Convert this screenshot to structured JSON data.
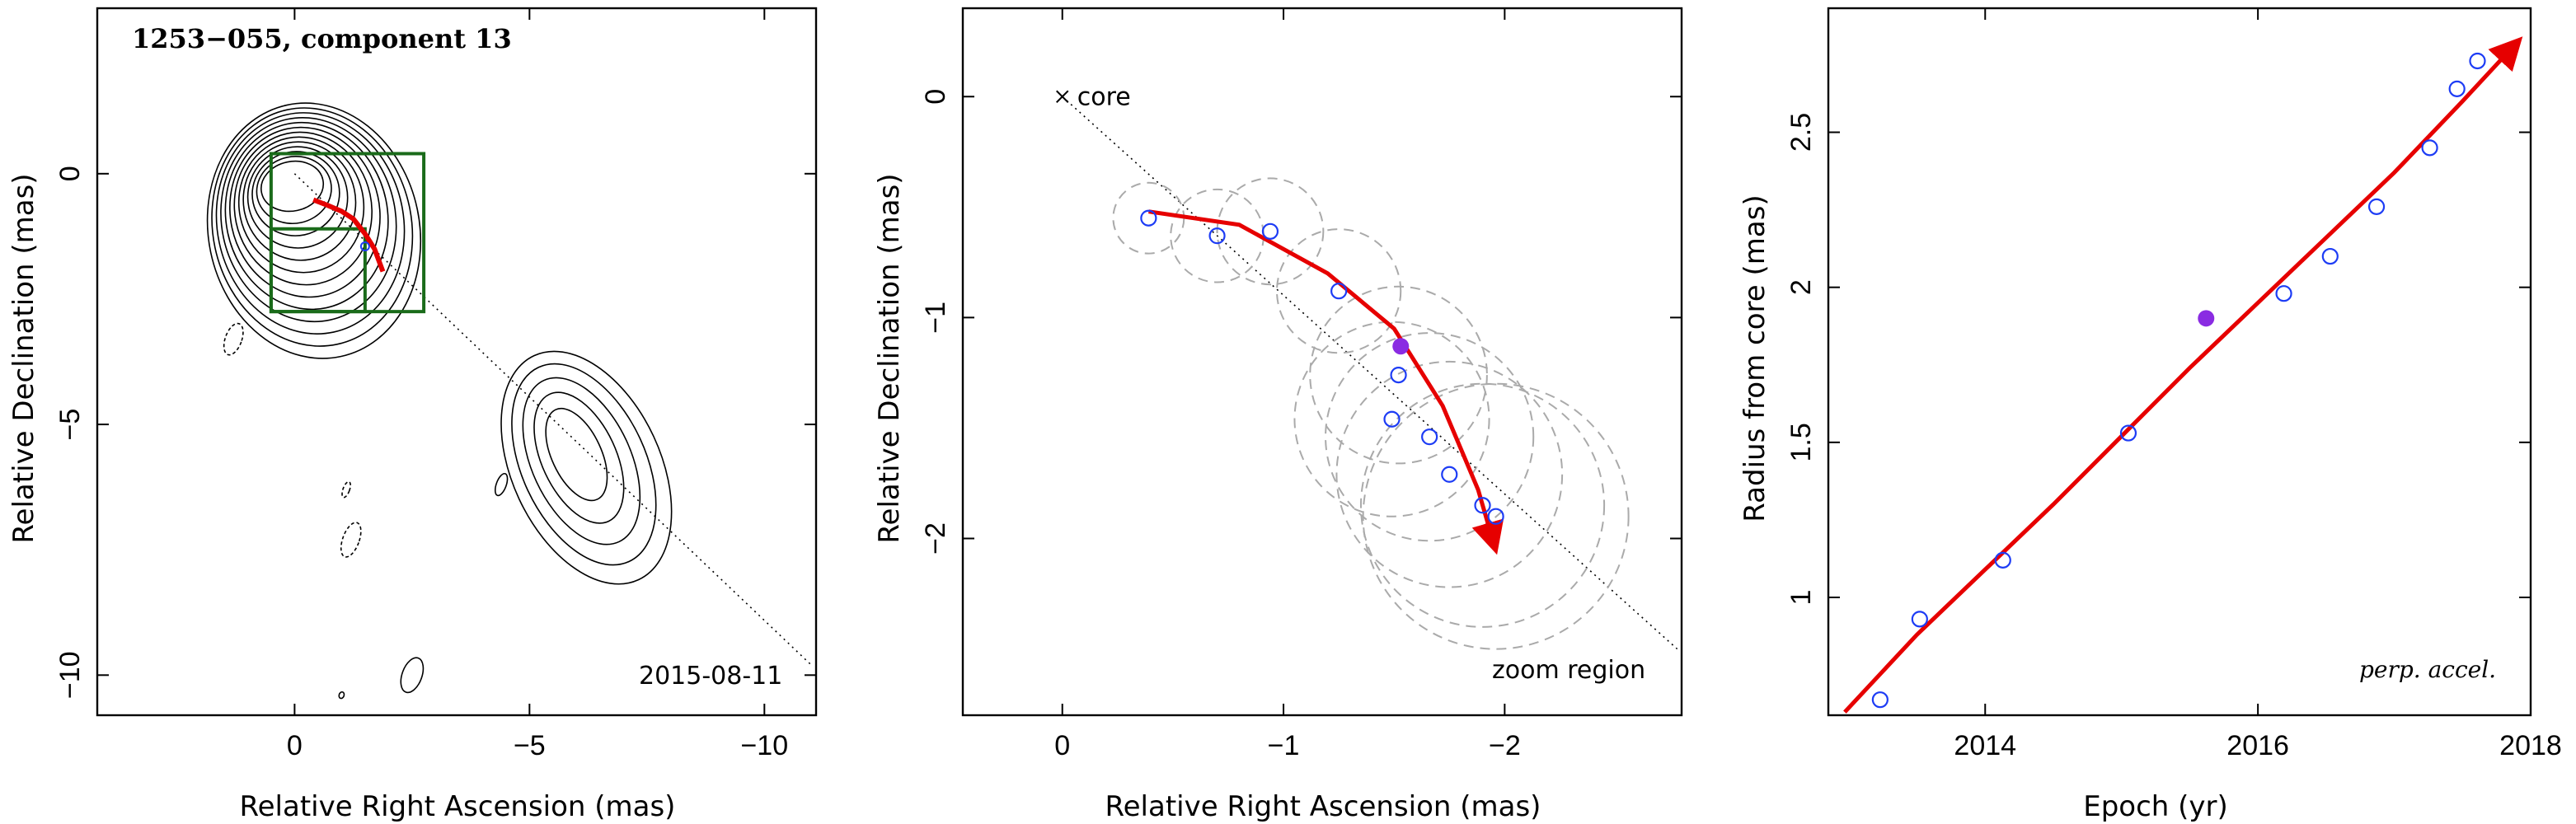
{
  "chart_data": [
    {
      "type": "contour",
      "title": "1253−055, component 13",
      "date_label": "2015-08-11",
      "xlabel": "Relative Right Ascension (mas)",
      "ylabel": "Relative Declination (mas)",
      "xlim": [
        4.2,
        -11.1
      ],
      "ylim": [
        -10.8,
        3.3
      ],
      "xticks": [
        {
          "v": 0,
          "label": "0"
        },
        {
          "v": -5,
          "label": "−5"
        },
        {
          "v": -10,
          "label": "−10"
        }
      ],
      "yticks": [
        {
          "v": 0,
          "label": "0"
        },
        {
          "v": -5,
          "label": "−5"
        },
        {
          "v": -10,
          "label": "−10"
        }
      ],
      "zoom_boxes": [
        {
          "x1": 0.5,
          "x2": -2.75,
          "y1": 0.4,
          "y2": -2.75
        },
        {
          "x1": 0.5,
          "x2": -1.5,
          "y1": -1.1,
          "y2": -2.75
        }
      ],
      "trajectory_line": {
        "x1": 0,
        "y1": 0,
        "x2": -11,
        "y2": -9.8
      },
      "trajectory_arrow": [
        [
          -0.4,
          -0.52
        ],
        [
          -0.7,
          -0.63
        ],
        [
          -1.0,
          -0.75
        ],
        [
          -1.25,
          -0.9
        ],
        [
          -1.5,
          -1.2
        ],
        [
          -1.7,
          -1.5
        ],
        [
          -1.88,
          -1.95
        ]
      ],
      "marker": {
        "x": -1.5,
        "y": -1.45
      }
    },
    {
      "type": "scatter",
      "xlabel": "Relative Right Ascension (mas)",
      "ylabel": "Relative Declination (mas)",
      "xlim": [
        0.45,
        -2.8
      ],
      "ylim": [
        -2.8,
        0.4
      ],
      "xticks": [
        {
          "v": 0,
          "label": "0"
        },
        {
          "v": -1,
          "label": "−1"
        },
        {
          "v": -2,
          "label": "−2"
        }
      ],
      "yticks": [
        {
          "v": 0,
          "label": "0"
        },
        {
          "v": -1,
          "label": "−1"
        },
        {
          "v": -2,
          "label": "−2"
        }
      ],
      "core_label": "core",
      "corner_label": "zoom region",
      "trajectory_line": {
        "x1": 0,
        "y1": 0,
        "x2": -2.78,
        "y2": -2.5
      },
      "points": [
        {
          "x": -0.39,
          "y": -0.55,
          "r": 0.16
        },
        {
          "x": -0.7,
          "y": -0.63,
          "r": 0.21
        },
        {
          "x": -0.94,
          "y": -0.61,
          "r": 0.24
        },
        {
          "x": -1.25,
          "y": -0.88,
          "r": 0.28
        },
        {
          "x": -1.52,
          "y": -1.26,
          "r": 0.4
        },
        {
          "x": -1.49,
          "y": -1.46,
          "r": 0.44
        },
        {
          "x": -1.66,
          "y": -1.54,
          "r": 0.47
        },
        {
          "x": -1.75,
          "y": -1.71,
          "r": 0.51
        },
        {
          "x": -1.9,
          "y": -1.85,
          "r": 0.55
        },
        {
          "x": -1.96,
          "y": -1.9,
          "r": 0.6
        }
      ],
      "filled_point": {
        "x": -1.53,
        "y": -1.13
      },
      "fit_curve": [
        [
          -0.39,
          -0.52
        ],
        [
          -0.8,
          -0.58
        ],
        [
          -1.2,
          -0.8
        ],
        [
          -1.5,
          -1.05
        ],
        [
          -1.72,
          -1.4
        ],
        [
          -1.88,
          -1.78
        ],
        [
          -1.95,
          -2.02
        ]
      ]
    },
    {
      "type": "scatter",
      "xlabel": "Epoch (yr)",
      "ylabel": "Radius from core (mas)",
      "xlim": [
        2012.85,
        2018
      ],
      "ylim": [
        0.62,
        2.9
      ],
      "xticks": [
        {
          "v": 2014,
          "label": "2014"
        },
        {
          "v": 2016,
          "label": "2016"
        },
        {
          "v": 2018,
          "label": "2018"
        }
      ],
      "yticks": [
        {
          "v": 1,
          "label": "1"
        },
        {
          "v": 1.5,
          "label": "1.5"
        },
        {
          "v": 2,
          "label": "2"
        },
        {
          "v": 2.5,
          "label": "2.5"
        }
      ],
      "annotation": "perp. accel.",
      "points": [
        {
          "x": 2013.23,
          "y": 0.67
        },
        {
          "x": 2013.52,
          "y": 0.93
        },
        {
          "x": 2014.13,
          "y": 1.12
        },
        {
          "x": 2015.05,
          "y": 1.53
        },
        {
          "x": 2016.19,
          "y": 1.98
        },
        {
          "x": 2016.53,
          "y": 2.1
        },
        {
          "x": 2016.87,
          "y": 2.26
        },
        {
          "x": 2017.26,
          "y": 2.45
        },
        {
          "x": 2017.46,
          "y": 2.64
        },
        {
          "x": 2017.61,
          "y": 2.73
        }
      ],
      "filled_point": {
        "x": 2015.62,
        "y": 1.9
      },
      "fit_curve": [
        [
          2012.97,
          0.63
        ],
        [
          2013.5,
          0.88
        ],
        [
          2014.0,
          1.09
        ],
        [
          2014.5,
          1.3
        ],
        [
          2015.0,
          1.52
        ],
        [
          2015.5,
          1.74
        ],
        [
          2016.0,
          1.95
        ],
        [
          2016.5,
          2.16
        ],
        [
          2017.0,
          2.37
        ],
        [
          2017.5,
          2.6
        ],
        [
          2017.88,
          2.78
        ]
      ]
    }
  ],
  "colors": {
    "data_open": "#1d3cf5",
    "data_filled": "#8a2be2",
    "fit": "#e60000",
    "box": "#1a6b1a",
    "circles": "#aaaaaa"
  }
}
